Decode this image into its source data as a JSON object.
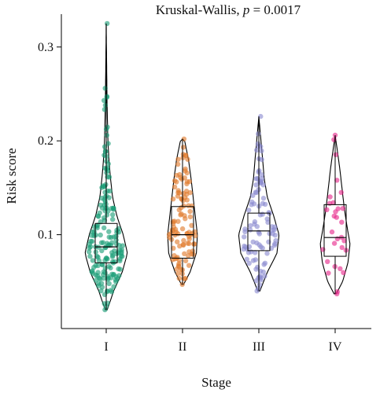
{
  "chart_data": {
    "type": "violin",
    "title": "Kruskal-Wallis, ",
    "title_stat_symbol": "p",
    "title_stat_value": " = 0.0017",
    "xlabel": "Stage",
    "ylabel": "Risk score",
    "categories": [
      "I",
      "II",
      "III",
      "IV"
    ],
    "ylim": [
      0.0,
      0.335
    ],
    "y_ticks": [
      0.1,
      0.2,
      0.3
    ],
    "y_tick_labels": [
      "0.1",
      "0.2",
      "0.3"
    ],
    "grid": false,
    "legend": "none",
    "colors": [
      "#1b9e77",
      "#e07b2d",
      "#8a8ad0",
      "#e7298a"
    ],
    "groups": [
      {
        "name": "I",
        "min": 0.02,
        "q1": 0.07,
        "median": 0.087,
        "q3": 0.112,
        "max": 0.325,
        "n_points": 180,
        "density": [
          [
            0.02,
            0.05
          ],
          [
            0.04,
            0.35
          ],
          [
            0.06,
            0.75
          ],
          [
            0.08,
            1.0
          ],
          [
            0.1,
            0.8
          ],
          [
            0.12,
            0.5
          ],
          [
            0.14,
            0.3
          ],
          [
            0.16,
            0.2
          ],
          [
            0.18,
            0.13
          ],
          [
            0.2,
            0.08
          ],
          [
            0.24,
            0.04
          ],
          [
            0.28,
            0.02
          ],
          [
            0.325,
            0.0
          ]
        ]
      },
      {
        "name": "II",
        "min": 0.047,
        "q1": 0.075,
        "median": 0.1,
        "q3": 0.13,
        "max": 0.202,
        "n_points": 110,
        "density": [
          [
            0.047,
            0.05
          ],
          [
            0.06,
            0.35
          ],
          [
            0.08,
            0.65
          ],
          [
            0.1,
            0.7
          ],
          [
            0.12,
            0.6
          ],
          [
            0.14,
            0.5
          ],
          [
            0.16,
            0.4
          ],
          [
            0.18,
            0.28
          ],
          [
            0.2,
            0.1
          ],
          [
            0.202,
            0.0
          ]
        ]
      },
      {
        "name": "III",
        "min": 0.04,
        "q1": 0.083,
        "median": 0.104,
        "q3": 0.123,
        "max": 0.226,
        "n_points": 95,
        "density": [
          [
            0.04,
            0.05
          ],
          [
            0.06,
            0.4
          ],
          [
            0.08,
            0.85
          ],
          [
            0.1,
            0.95
          ],
          [
            0.12,
            0.7
          ],
          [
            0.14,
            0.4
          ],
          [
            0.16,
            0.25
          ],
          [
            0.18,
            0.18
          ],
          [
            0.2,
            0.1
          ],
          [
            0.226,
            0.0
          ]
        ]
      },
      {
        "name": "IV",
        "min": 0.037,
        "q1": 0.077,
        "median": 0.097,
        "q3": 0.132,
        "max": 0.206,
        "n_points": 30,
        "density": [
          [
            0.037,
            0.05
          ],
          [
            0.05,
            0.35
          ],
          [
            0.07,
            0.6
          ],
          [
            0.09,
            0.7
          ],
          [
            0.11,
            0.55
          ],
          [
            0.13,
            0.42
          ],
          [
            0.15,
            0.32
          ],
          [
            0.17,
            0.22
          ],
          [
            0.19,
            0.1
          ],
          [
            0.206,
            0.0
          ]
        ]
      }
    ]
  }
}
